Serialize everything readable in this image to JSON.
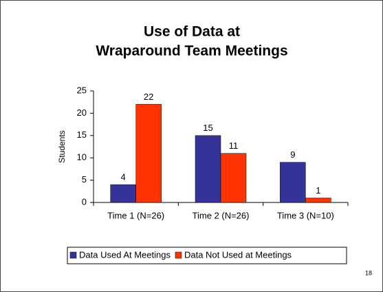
{
  "page_number": "18",
  "chart_data": {
    "type": "bar",
    "title": [
      "Use of Data at",
      "Wraparound Team Meetings"
    ],
    "y_label": "Students",
    "categories": [
      "Time 1 (N=26)",
      "Time 2 (N=26)",
      "Time 3 (N=10)"
    ],
    "series": [
      {
        "name": "Data Used At Meetings",
        "color": "#333399",
        "values": [
          4,
          15,
          9
        ]
      },
      {
        "name": "Data Not Used at Meetings",
        "color": "#ff3300",
        "values": [
          22,
          11,
          1
        ]
      }
    ],
    "ylim": [
      0,
      25
    ],
    "yticks": [
      0,
      5,
      10,
      15,
      20,
      25
    ],
    "grid": false,
    "legend": "bottom"
  }
}
